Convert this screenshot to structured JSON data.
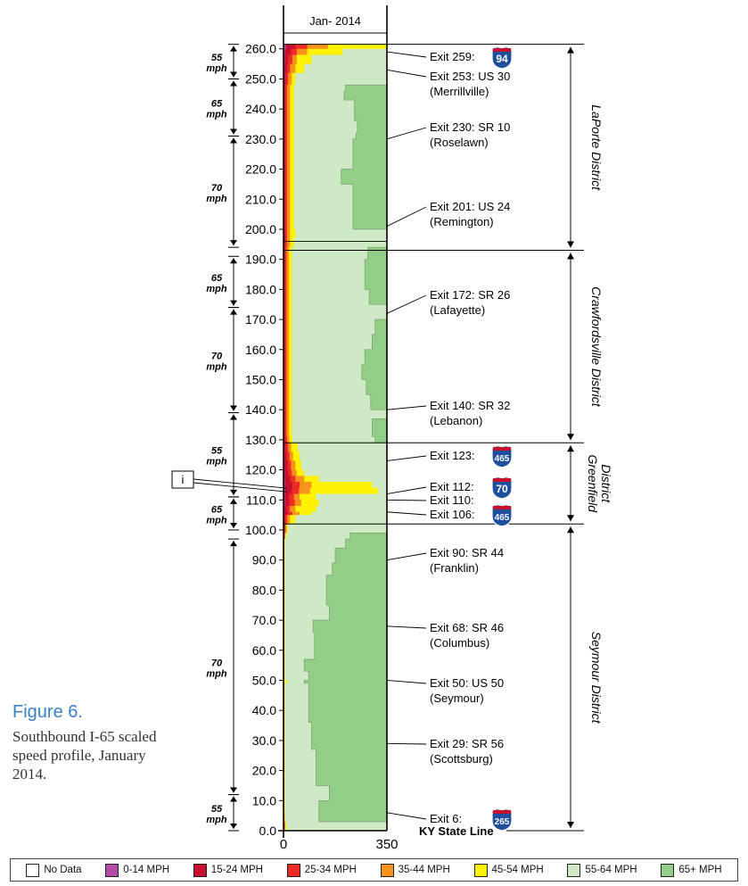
{
  "figure": {
    "title": "Figure 6.",
    "caption": "Southbound I-65 scaled speed profile, January 2014."
  },
  "chart_data": {
    "type": "area",
    "title": "Jan- 2014",
    "xlim": [
      0,
      350
    ],
    "x_ticks": [
      "0",
      "350"
    ],
    "ylim": [
      0,
      262
    ],
    "y_ticks": [
      "0.0",
      "10.0",
      "20.0",
      "30.0",
      "40.0",
      "50.0",
      "60.0",
      "70.0",
      "80.0",
      "90.0",
      "100.0",
      "110.0",
      "120.0",
      "130.0",
      "140.0",
      "150.0",
      "160.0",
      "170.0",
      "180.0",
      "190.0",
      "200.0",
      "210.0",
      "220.0",
      "230.0",
      "240.0",
      "250.0",
      "260.0"
    ],
    "speed_classes": [
      "0-14 MPH",
      "15-24 MPH",
      "25-34 MPH",
      "35-44 MPH",
      "45-54 MPH",
      "55-64 MPH",
      "65+ MPH"
    ],
    "class_colors": [
      "#b24ca8",
      "#c8102e",
      "#ee2a24",
      "#f7931d",
      "#fff200",
      "#cfe8c6",
      "#93ce86"
    ],
    "profile": [
      {
        "mm": 0,
        "b": [
          1,
          2,
          4,
          6,
          10,
          350,
          350
        ]
      },
      {
        "mm": 3,
        "b": [
          0,
          1,
          2,
          4,
          6,
          120,
          350
        ]
      },
      {
        "mm": 6,
        "b": [
          0,
          1,
          2,
          3,
          5,
          120,
          350
        ]
      },
      {
        "mm": 10,
        "b": [
          0,
          1,
          2,
          3,
          5,
          155,
          350
        ]
      },
      {
        "mm": 15,
        "b": [
          0,
          1,
          2,
          3,
          5,
          110,
          350
        ]
      },
      {
        "mm": 20,
        "b": [
          0,
          1,
          2,
          3,
          5,
          110,
          350
        ]
      },
      {
        "mm": 27,
        "b": [
          0,
          1,
          2,
          3,
          5,
          95,
          350
        ]
      },
      {
        "mm": 32,
        "b": [
          0,
          1,
          2,
          3,
          5,
          95,
          350
        ]
      },
      {
        "mm": 36,
        "b": [
          0,
          1,
          2,
          3,
          5,
          85,
          350
        ]
      },
      {
        "mm": 45,
        "b": [
          0,
          1,
          2,
          3,
          5,
          85,
          350
        ]
      },
      {
        "mm": 49,
        "b": [
          0,
          1,
          2,
          3,
          12,
          70,
          350
        ]
      },
      {
        "mm": 50,
        "b": [
          0,
          1,
          2,
          3,
          5,
          85,
          350
        ]
      },
      {
        "mm": 53,
        "b": [
          0,
          1,
          2,
          3,
          5,
          70,
          350
        ]
      },
      {
        "mm": 57,
        "b": [
          0,
          1,
          2,
          3,
          5,
          105,
          350
        ]
      },
      {
        "mm": 62,
        "b": [
          0,
          1,
          2,
          3,
          5,
          105,
          350
        ]
      },
      {
        "mm": 66,
        "b": [
          0,
          1,
          2,
          3,
          5,
          100,
          350
        ]
      },
      {
        "mm": 70,
        "b": [
          0,
          1,
          2,
          3,
          5,
          155,
          350
        ]
      },
      {
        "mm": 75,
        "b": [
          0,
          1,
          2,
          3,
          5,
          145,
          350
        ]
      },
      {
        "mm": 80,
        "b": [
          0,
          1,
          2,
          3,
          5,
          145,
          350
        ]
      },
      {
        "mm": 85,
        "b": [
          0,
          1,
          2,
          3,
          5,
          165,
          350
        ]
      },
      {
        "mm": 89,
        "b": [
          0,
          1,
          2,
          3,
          5,
          175,
          350
        ]
      },
      {
        "mm": 94,
        "b": [
          0,
          1,
          2,
          3,
          5,
          210,
          350
        ]
      },
      {
        "mm": 97,
        "b": [
          0,
          2,
          4,
          6,
          9,
          225,
          350
        ]
      },
      {
        "mm": 99,
        "b": [
          1,
          4,
          7,
          10,
          14,
          350,
          350
        ]
      },
      {
        "mm": 102,
        "b": [
          2,
          6,
          12,
          22,
          40,
          350,
          350
        ]
      },
      {
        "mm": 105,
        "b": [
          3,
          15,
          30,
          55,
          95,
          350,
          350
        ]
      },
      {
        "mm": 106,
        "b": [
          3,
          12,
          22,
          40,
          110,
          350,
          350
        ]
      },
      {
        "mm": 108,
        "b": [
          4,
          20,
          38,
          60,
          120,
          350,
          350
        ]
      },
      {
        "mm": 110,
        "b": [
          4,
          18,
          35,
          55,
          110,
          350,
          350
        ]
      },
      {
        "mm": 112,
        "b": [
          5,
          28,
          52,
          90,
          320,
          350,
          350
        ]
      },
      {
        "mm": 114,
        "b": [
          5,
          30,
          55,
          95,
          300,
          350,
          350
        ]
      },
      {
        "mm": 116,
        "b": [
          4,
          22,
          40,
          70,
          120,
          350,
          350
        ]
      },
      {
        "mm": 118,
        "b": [
          3,
          16,
          28,
          45,
          70,
          350,
          350
        ]
      },
      {
        "mm": 120,
        "b": [
          3,
          14,
          25,
          40,
          60,
          350,
          350
        ]
      },
      {
        "mm": 123,
        "b": [
          2,
          10,
          20,
          32,
          55,
          350,
          350
        ]
      },
      {
        "mm": 126,
        "b": [
          2,
          8,
          16,
          26,
          48,
          350,
          350
        ]
      },
      {
        "mm": 129,
        "b": [
          1,
          6,
          12,
          20,
          30,
          310,
          350
        ]
      },
      {
        "mm": 131,
        "b": [
          1,
          5,
          10,
          18,
          28,
          300,
          350
        ]
      },
      {
        "mm": 134,
        "b": [
          1,
          5,
          10,
          18,
          28,
          300,
          350
        ]
      },
      {
        "mm": 137,
        "b": [
          1,
          5,
          10,
          18,
          28,
          350,
          350
        ]
      },
      {
        "mm": 140,
        "b": [
          1,
          5,
          10,
          18,
          28,
          295,
          350
        ]
      },
      {
        "mm": 145,
        "b": [
          1,
          5,
          10,
          18,
          28,
          280,
          350
        ]
      },
      {
        "mm": 150,
        "b": [
          1,
          5,
          10,
          18,
          28,
          265,
          350
        ]
      },
      {
        "mm": 155,
        "b": [
          1,
          5,
          10,
          18,
          28,
          275,
          350
        ]
      },
      {
        "mm": 160,
        "b": [
          1,
          5,
          10,
          18,
          28,
          300,
          350
        ]
      },
      {
        "mm": 165,
        "b": [
          1,
          5,
          10,
          18,
          28,
          310,
          350
        ]
      },
      {
        "mm": 170,
        "b": [
          1,
          5,
          10,
          18,
          28,
          350,
          350
        ]
      },
      {
        "mm": 175,
        "b": [
          1,
          5,
          10,
          18,
          28,
          290,
          350
        ]
      },
      {
        "mm": 180,
        "b": [
          1,
          5,
          10,
          18,
          28,
          275,
          350
        ]
      },
      {
        "mm": 185,
        "b": [
          1,
          5,
          10,
          18,
          28,
          275,
          350
        ]
      },
      {
        "mm": 190,
        "b": [
          1,
          5,
          10,
          18,
          28,
          285,
          350
        ]
      },
      {
        "mm": 194,
        "b": [
          2,
          6,
          12,
          22,
          35,
          350,
          350
        ]
      },
      {
        "mm": 197,
        "b": [
          2,
          6,
          12,
          22,
          40,
          350,
          350
        ]
      },
      {
        "mm": 200,
        "b": [
          2,
          6,
          12,
          22,
          35,
          235,
          350
        ]
      },
      {
        "mm": 205,
        "b": [
          2,
          6,
          12,
          22,
          35,
          235,
          350
        ]
      },
      {
        "mm": 210,
        "b": [
          2,
          6,
          12,
          22,
          35,
          235,
          350
        ]
      },
      {
        "mm": 215,
        "b": [
          2,
          6,
          12,
          22,
          35,
          195,
          350
        ]
      },
      {
        "mm": 220,
        "b": [
          2,
          6,
          12,
          22,
          35,
          235,
          350
        ]
      },
      {
        "mm": 225,
        "b": [
          2,
          6,
          12,
          22,
          35,
          235,
          350
        ]
      },
      {
        "mm": 230,
        "b": [
          2,
          6,
          12,
          22,
          35,
          245,
          350
        ]
      },
      {
        "mm": 232,
        "b": [
          2,
          6,
          12,
          22,
          35,
          250,
          350
        ]
      },
      {
        "mm": 236,
        "b": [
          2,
          6,
          12,
          22,
          35,
          240,
          350
        ]
      },
      {
        "mm": 240,
        "b": [
          2,
          6,
          12,
          22,
          35,
          240,
          350
        ]
      },
      {
        "mm": 243,
        "b": [
          2,
          6,
          12,
          22,
          35,
          205,
          350
        ]
      },
      {
        "mm": 246,
        "b": [
          2,
          6,
          12,
          22,
          35,
          210,
          350
        ]
      },
      {
        "mm": 248,
        "b": [
          2,
          8,
          16,
          28,
          40,
          350,
          350
        ]
      },
      {
        "mm": 252,
        "b": [
          3,
          12,
          22,
          40,
          70,
          350,
          350
        ]
      },
      {
        "mm": 255,
        "b": [
          4,
          15,
          30,
          45,
          95,
          350,
          350
        ]
      },
      {
        "mm": 258,
        "b": [
          5,
          25,
          45,
          80,
          200,
          350,
          350
        ]
      },
      {
        "mm": 260,
        "b": [
          8,
          40,
          80,
          150,
          350,
          350,
          350
        ]
      },
      {
        "mm": 261.5,
        "b": [
          8,
          40,
          80,
          150,
          350,
          350,
          350
        ]
      }
    ],
    "speed_limits": [
      {
        "label": "55 mph",
        "from": 250,
        "to": 261.5
      },
      {
        "label": "65 mph",
        "from": 231,
        "to": 250
      },
      {
        "label": "70 mph",
        "from": 194,
        "to": 231
      },
      {
        "label": "65 mph",
        "from": 174,
        "to": 191
      },
      {
        "label": "70 mph",
        "from": 139,
        "to": 174
      },
      {
        "label": "55 mph",
        "from": 111,
        "to": 139
      },
      {
        "label": "65 mph",
        "from": 100,
        "to": 111
      },
      {
        "label": "70 mph",
        "from": 12,
        "to": 97
      },
      {
        "label": "55 mph",
        "from": 0,
        "to": 12
      }
    ],
    "exits": [
      {
        "label": "Exit 259:",
        "sub": "",
        "mm": 259,
        "shield": "94"
      },
      {
        "label": "Exit 253: US 30",
        "sub": "(Merrillville)",
        "mm": 253,
        "shield": ""
      },
      {
        "label": "Exit 230: SR 10",
        "sub": "(Roselawn)",
        "mm": 230,
        "shield": ""
      },
      {
        "label": "Exit 201: US 24",
        "sub": "(Remington)",
        "mm": 201,
        "shield": ""
      },
      {
        "label": "Exit 172: SR 26",
        "sub": "(Lafayette)",
        "mm": 172,
        "shield": ""
      },
      {
        "label": "Exit 140: SR 32",
        "sub": "(Lebanon)",
        "mm": 140,
        "shield": ""
      },
      {
        "label": "Exit 123:",
        "sub": "",
        "mm": 123,
        "shield": "465"
      },
      {
        "label": "Exit 112:",
        "sub": "",
        "mm": 112,
        "shield": "70"
      },
      {
        "label": "Exit 110:",
        "sub": "",
        "mm": 110,
        "shield": ""
      },
      {
        "label": "Exit 106:",
        "sub": "",
        "mm": 106,
        "shield": "465"
      },
      {
        "label": "Exit 90: SR 44",
        "sub": "(Franklin)",
        "mm": 90,
        "shield": ""
      },
      {
        "label": "Exit 68: SR 46",
        "sub": "(Columbus)",
        "mm": 68,
        "shield": ""
      },
      {
        "label": "Exit 50: US 50",
        "sub": "(Seymour)",
        "mm": 50,
        "shield": ""
      },
      {
        "label": "Exit 29: SR 56",
        "sub": "(Scottsburg)",
        "mm": 29,
        "shield": ""
      },
      {
        "label": "Exit 6:",
        "sub": "",
        "mm": 6,
        "shield": "265"
      }
    ],
    "state_line": {
      "label": "KY State Line",
      "mm": 0
    },
    "districts": [
      {
        "name": "LaPorte District",
        "from": 193,
        "to": 261.5
      },
      {
        "name": "Crawfordsville District",
        "from": 129,
        "to": 193
      },
      {
        "name": "Greenfield District",
        "from": 102,
        "to": 129
      },
      {
        "name": "Seymour District",
        "from": 0,
        "to": 102
      }
    ],
    "district_boundaries": [
      261.5,
      196,
      193,
      129,
      102
    ],
    "annotation": {
      "label": "i",
      "mm": 113
    }
  },
  "legend": [
    {
      "label": "No Data",
      "color": "#ffffff"
    },
    {
      "label": "0-14 MPH",
      "color": "#b24ca8"
    },
    {
      "label": "15-24 MPH",
      "color": "#c8102e"
    },
    {
      "label": "25-34 MPH",
      "color": "#ee2a24"
    },
    {
      "label": "35-44 MPH",
      "color": "#f7931d"
    },
    {
      "label": "45-54 MPH",
      "color": "#fff200"
    },
    {
      "label": "55-64 MPH",
      "color": "#cfe8c6"
    },
    {
      "label": "65+ MPH",
      "color": "#93ce86"
    }
  ]
}
